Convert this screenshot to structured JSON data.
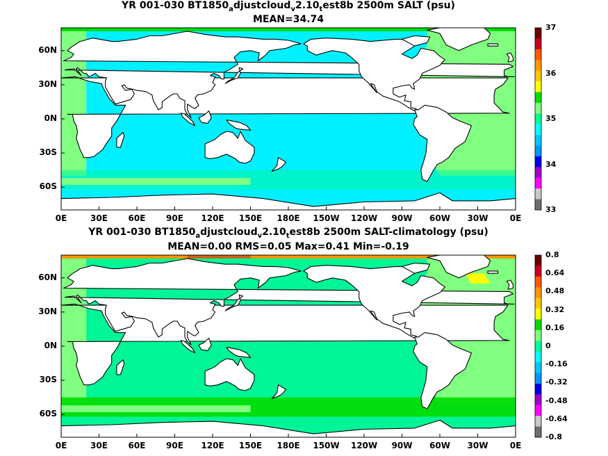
{
  "panels": [
    {
      "title_parts": [
        "YR 001-030 BT1850",
        "a",
        "djustcloud",
        "v",
        "2.10",
        "t",
        "est8b 2500m SALT (psu)"
      ],
      "subtitle": "MEAN=34.74",
      "colorbar": {
        "labels": [
          "37",
          "36",
          "35",
          "34",
          "33"
        ],
        "colors": [
          "#6e0000",
          "#c8001e",
          "#ff5a00",
          "#ff9600",
          "#ffc800",
          "#ffff00",
          "#00dc00",
          "#80ff80",
          "#00ff96",
          "#00ffff",
          "#00c8ff",
          "#0096ff",
          "#0000e6",
          "#a000c8",
          "#ff00ff",
          "#c8c8c8",
          "#6e6e6e"
        ]
      },
      "ocean_colors": {
        "main": "#00f0ff",
        "atlantic": "#80ff80",
        "edge": "#00f5a0",
        "ice": "#00dc00"
      }
    },
    {
      "title_parts": [
        "YR 001-030 BT1850",
        "a",
        "djustcloud",
        "v",
        "2.10",
        "t",
        "est8b 2500m SALT-climatology (psu)"
      ],
      "subtitle": "MEAN=0.00   RMS=0.05   Max=0.41   Min=-0.19",
      "colorbar": {
        "labels": [
          "0.8",
          "0.64",
          "0.48",
          "0.32",
          "0.16",
          "0",
          "-0.16",
          "-0.32",
          "-0.48",
          "-0.64",
          "-0.8"
        ],
        "colors": [
          "#6e0000",
          "#c8001e",
          "#ff5a00",
          "#ff9600",
          "#ffc800",
          "#ffff00",
          "#00dc00",
          "#80ff80",
          "#00ff96",
          "#00ffff",
          "#00c8ff",
          "#0096ff",
          "#0000e6",
          "#a000c8",
          "#ff00ff",
          "#c8c8c8",
          "#6e6e6e"
        ]
      },
      "ocean_colors": {
        "main": "#00f596",
        "atlantic": "#80ff80",
        "edge": "#00dc00",
        "ice": "#ff9600"
      }
    }
  ],
  "axes": {
    "x_ticks": [
      "0E",
      "30E",
      "60E",
      "90E",
      "120E",
      "150E",
      "180E",
      "150W",
      "120W",
      "90W",
      "60W",
      "30W",
      "0E"
    ],
    "y_ticks": [
      "60N",
      "30N",
      "0N",
      "30S",
      "60S"
    ]
  },
  "chart_data": [
    {
      "type": "heatmap",
      "title": "YR 001-030 BT1850_adjustcloud_v2.10_test8b 2500m SALT (psu)",
      "subtitle": "MEAN=34.74",
      "x_range": [
        0,
        360
      ],
      "y_range": [
        -80,
        80
      ],
      "colorbar_range": [
        33,
        37
      ],
      "colorbar_ticks": [
        37,
        36,
        35,
        34,
        33
      ],
      "mean": 34.74
    },
    {
      "type": "heatmap",
      "title": "YR 001-030 BT1850_adjustcloud_v2.10_test8b 2500m SALT-climatology (psu)",
      "subtitle": "MEAN=0.00   RMS=0.05   Max=0.41   Min=-0.19",
      "x_range": [
        0,
        360
      ],
      "y_range": [
        -80,
        80
      ],
      "colorbar_range": [
        -0.8,
        0.8
      ],
      "colorbar_ticks": [
        0.8,
        0.64,
        0.48,
        0.32,
        0.16,
        0,
        -0.16,
        -0.32,
        -0.48,
        -0.64,
        -0.8
      ],
      "mean": 0.0,
      "rms": 0.05,
      "max": 0.41,
      "min": -0.19
    }
  ]
}
